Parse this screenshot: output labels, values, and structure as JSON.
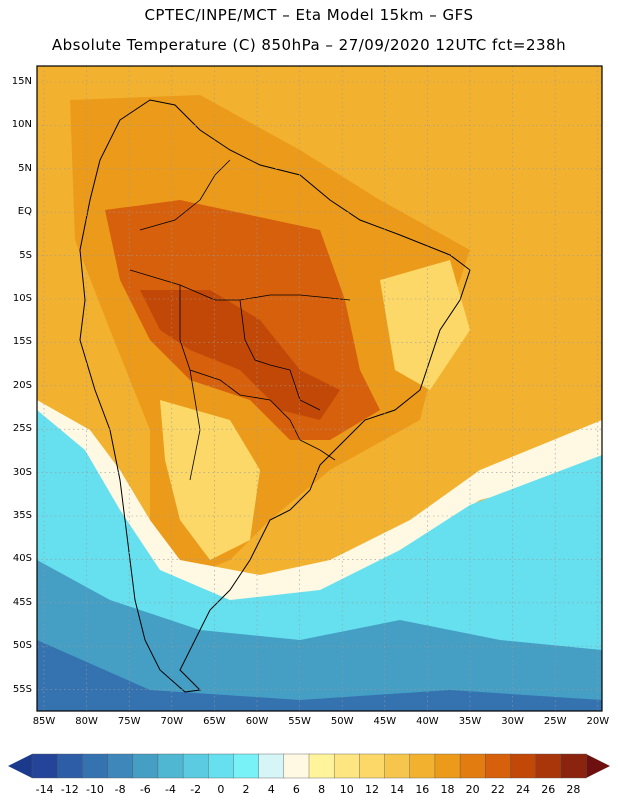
{
  "title_line1": "CPTEC/INPE/MCT –  Eta Model 15km – GFS",
  "title_line2": "Absolute Temperature (C) 850hPa – 27/09/2020 12UTC fct=238h",
  "lat_labels": [
    "15N",
    "10N",
    "5N",
    "EQ",
    "5S",
    "10S",
    "15S",
    "20S",
    "25S",
    "30S",
    "35S",
    "40S",
    "45S",
    "50S",
    "55S"
  ],
  "lon_labels": [
    "85W",
    "80W",
    "75W",
    "70W",
    "65W",
    "60W",
    "55W",
    "50W",
    "45W",
    "40W",
    "35W",
    "30W",
    "25W",
    "20W"
  ],
  "colorbar": {
    "labels": [
      "-14",
      "-12",
      "-10",
      "-8",
      "-6",
      "-4",
      "-2",
      "0",
      "2",
      "4",
      "6",
      "8",
      "10",
      "12",
      "14",
      "16",
      "18",
      "20",
      "22",
      "24",
      "26",
      "28"
    ],
    "colors": [
      "#24449a",
      "#2c5da6",
      "#3573b0",
      "#3d87ba",
      "#459ec4",
      "#4fb7d1",
      "#5acbe0",
      "#66e0ef",
      "#78f2f7",
      "#d6f5f7",
      "#fff8e3",
      "#fff49c",
      "#fde681",
      "#fbd868",
      "#f6c64c",
      "#f2b22f",
      "#ec9a1a",
      "#e27c10",
      "#d6600c",
      "#c24808",
      "#a8360a",
      "#8a240e"
    ],
    "low_arrow_color": "#1c3a8c",
    "high_arrow_color": "#6e1010"
  },
  "map": {
    "ocean_color": "#f2b22f",
    "warm_color": "#ec9a1a",
    "hot_color": "#d6600c",
    "hottest_color": "#c24808",
    "cool_color": "#fbd868",
    "pale_color": "#fff8e3",
    "cold_color": "#66e0ef",
    "colder_color": "#459ec4",
    "coldest_color": "#3573b0"
  }
}
